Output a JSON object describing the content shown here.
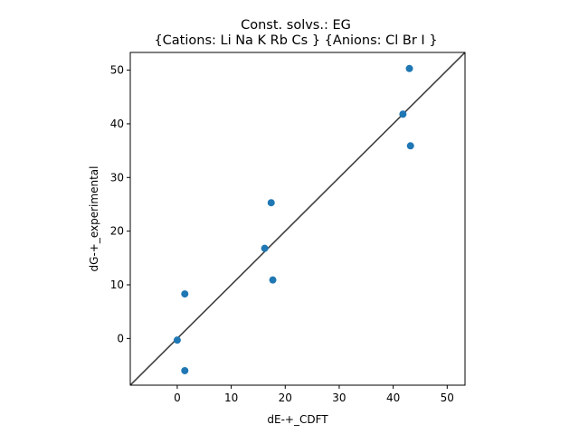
{
  "chart_data": {
    "type": "scatter",
    "title_line1": "Const. solvs.: EG",
    "title_line2": "{Cations: Li Na K Rb Cs } {Anions: Cl Br I }",
    "xlabel": "dE-+_CDFT",
    "ylabel": "dG-+_experimental",
    "xlim": [
      -8.7,
      53.3
    ],
    "ylim": [
      -8.7,
      53.3
    ],
    "xticks": [
      0,
      10,
      20,
      30,
      40,
      50
    ],
    "yticks": [
      0,
      10,
      20,
      30,
      40,
      50
    ],
    "grid": false,
    "reference_line": "y = x",
    "point_color": "#1f77b4",
    "line_color": "#404040",
    "points": [
      {
        "x": 0.0,
        "y": -0.3
      },
      {
        "x": 1.4,
        "y": -6.0
      },
      {
        "x": 1.4,
        "y": 8.3
      },
      {
        "x": 16.2,
        "y": 16.8
      },
      {
        "x": 17.4,
        "y": 25.3
      },
      {
        "x": 17.7,
        "y": 10.9
      },
      {
        "x": 41.8,
        "y": 41.8
      },
      {
        "x": 43.0,
        "y": 50.3
      },
      {
        "x": 43.2,
        "y": 35.9
      }
    ]
  }
}
